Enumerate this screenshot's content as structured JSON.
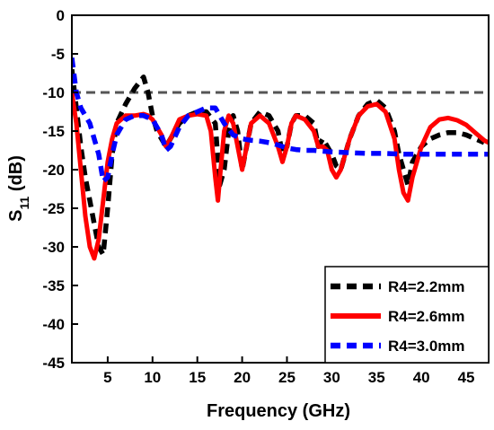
{
  "chart_data": {
    "type": "line",
    "title": "",
    "xlabel": "Frequency (GHz)",
    "ylabel_main": "S",
    "ylabel_sub": "11",
    "ylabel_suffix": " (dB)",
    "xlim": [
      1,
      47.5
    ],
    "ylim": [
      -45,
      0
    ],
    "xticks": [
      5,
      10,
      15,
      20,
      25,
      30,
      35,
      40,
      45
    ],
    "yticks": [
      0,
      -5,
      -10,
      -15,
      -20,
      -25,
      -30,
      -35,
      -40,
      -45
    ],
    "legend_position": "bottom-right",
    "reference_line": {
      "y": -10,
      "color": "#555555",
      "style": "dashed"
    },
    "series": [
      {
        "name": "R4=2.2mm",
        "color": "#000000",
        "style": "dashed",
        "points": [
          [
            1,
            -7
          ],
          [
            1.5,
            -12
          ],
          [
            2,
            -17
          ],
          [
            2.5,
            -21
          ],
          [
            3,
            -24
          ],
          [
            3.5,
            -27
          ],
          [
            4,
            -30
          ],
          [
            4.5,
            -31
          ],
          [
            5,
            -25
          ],
          [
            5.5,
            -18
          ],
          [
            6,
            -14
          ],
          [
            7,
            -11.5
          ],
          [
            8,
            -9.5
          ],
          [
            9,
            -8
          ],
          [
            9.5,
            -10
          ],
          [
            10,
            -13
          ],
          [
            10.5,
            -15
          ],
          [
            11,
            -16
          ],
          [
            11.5,
            -17
          ],
          [
            12,
            -16
          ],
          [
            13,
            -14
          ],
          [
            14,
            -13
          ],
          [
            15,
            -12.5
          ],
          [
            16,
            -12.5
          ],
          [
            17,
            -14
          ],
          [
            17.5,
            -22
          ],
          [
            18,
            -20
          ],
          [
            18.5,
            -15
          ],
          [
            19,
            -13
          ],
          [
            19.5,
            -15
          ],
          [
            20,
            -20
          ],
          [
            20.5,
            -17
          ],
          [
            21,
            -14
          ],
          [
            22,
            -12.5
          ],
          [
            23,
            -13
          ],
          [
            24,
            -15
          ],
          [
            24.5,
            -18
          ],
          [
            25,
            -17
          ],
          [
            25.5,
            -14
          ],
          [
            26,
            -13
          ],
          [
            27,
            -13
          ],
          [
            28,
            -14
          ],
          [
            28.5,
            -17
          ],
          [
            29,
            -16
          ],
          [
            30,
            -18
          ],
          [
            30.5,
            -19.5
          ],
          [
            31,
            -20
          ],
          [
            32,
            -16
          ],
          [
            33,
            -13
          ],
          [
            34,
            -11.5
          ],
          [
            35,
            -11
          ],
          [
            36,
            -12
          ],
          [
            37,
            -15
          ],
          [
            37.5,
            -18
          ],
          [
            38,
            -20
          ],
          [
            38.5,
            -22
          ],
          [
            39,
            -19
          ],
          [
            40,
            -17
          ],
          [
            41,
            -16
          ],
          [
            42,
            -15.5
          ],
          [
            43,
            -15.2
          ],
          [
            44,
            -15.2
          ],
          [
            45,
            -15.5
          ],
          [
            46,
            -16
          ],
          [
            47,
            -16.5
          ]
        ]
      },
      {
        "name": "R4=2.6mm",
        "color": "#ff0000",
        "style": "solid",
        "points": [
          [
            1,
            -10
          ],
          [
            1.5,
            -14
          ],
          [
            2,
            -20
          ],
          [
            2.5,
            -26
          ],
          [
            3,
            -30
          ],
          [
            3.5,
            -31.5
          ],
          [
            4,
            -29
          ],
          [
            4.5,
            -24
          ],
          [
            5,
            -19
          ],
          [
            5.5,
            -16
          ],
          [
            6,
            -14
          ],
          [
            7,
            -13
          ],
          [
            8,
            -13
          ],
          [
            9,
            -12.8
          ],
          [
            9.5,
            -13
          ],
          [
            10,
            -13.5
          ],
          [
            11,
            -15.5
          ],
          [
            11.5,
            -17
          ],
          [
            12,
            -16
          ],
          [
            13,
            -13.5
          ],
          [
            14,
            -13
          ],
          [
            15,
            -12.8
          ],
          [
            16,
            -13
          ],
          [
            16.5,
            -15
          ],
          [
            17,
            -21
          ],
          [
            17.3,
            -24
          ],
          [
            17.6,
            -20
          ],
          [
            18,
            -15
          ],
          [
            18.5,
            -13
          ],
          [
            19,
            -14
          ],
          [
            19.5,
            -17
          ],
          [
            20,
            -20
          ],
          [
            20.5,
            -17
          ],
          [
            21,
            -14
          ],
          [
            22,
            -13
          ],
          [
            23,
            -14
          ],
          [
            24,
            -17
          ],
          [
            24.5,
            -19
          ],
          [
            25,
            -17
          ],
          [
            25.5,
            -14
          ],
          [
            26,
            -13
          ],
          [
            27,
            -13.5
          ],
          [
            28,
            -15
          ],
          [
            28.5,
            -17
          ],
          [
            29,
            -17
          ],
          [
            29.5,
            -17.5
          ],
          [
            30,
            -20
          ],
          [
            30.5,
            -21
          ],
          [
            31,
            -20
          ],
          [
            32,
            -16
          ],
          [
            33,
            -13
          ],
          [
            34,
            -11.8
          ],
          [
            35,
            -11.5
          ],
          [
            36,
            -12.5
          ],
          [
            37,
            -16
          ],
          [
            37.5,
            -20
          ],
          [
            38,
            -23
          ],
          [
            38.5,
            -24
          ],
          [
            39,
            -21
          ],
          [
            40,
            -17
          ],
          [
            41,
            -14.5
          ],
          [
            42,
            -13.5
          ],
          [
            43,
            -13.3
          ],
          [
            44,
            -13.6
          ],
          [
            45,
            -14.2
          ],
          [
            46,
            -15.2
          ],
          [
            47,
            -16.2
          ],
          [
            47.5,
            -16.5
          ]
        ]
      },
      {
        "name": "R4=3.0mm",
        "color": "#0000ff",
        "style": "dashed",
        "points": [
          [
            1,
            -5.5
          ],
          [
            1.5,
            -10
          ],
          [
            2,
            -12
          ],
          [
            2.5,
            -13
          ],
          [
            3,
            -14
          ],
          [
            3.5,
            -16
          ],
          [
            4,
            -18
          ],
          [
            4.5,
            -21.5
          ],
          [
            5,
            -21
          ],
          [
            5.5,
            -18
          ],
          [
            6,
            -15.5
          ],
          [
            7,
            -13.5
          ],
          [
            8,
            -13
          ],
          [
            9,
            -13
          ],
          [
            10,
            -13.5
          ],
          [
            11,
            -15.5
          ],
          [
            11.5,
            -17.5
          ],
          [
            12,
            -17
          ],
          [
            13,
            -14.5
          ],
          [
            14,
            -13
          ],
          [
            15,
            -12.5
          ],
          [
            16,
            -12
          ],
          [
            17,
            -12
          ],
          [
            18,
            -14
          ],
          [
            19,
            -15.5
          ],
          [
            20,
            -16
          ],
          [
            21,
            -16.2
          ],
          [
            22,
            -16.3
          ],
          [
            23,
            -16.5
          ],
          [
            24,
            -16.8
          ],
          [
            25,
            -17.2
          ],
          [
            26,
            -17.4
          ],
          [
            27,
            -17.5
          ],
          [
            28,
            -17.5
          ],
          [
            30,
            -17.7
          ],
          [
            32,
            -17.8
          ],
          [
            34,
            -17.9
          ],
          [
            36,
            -17.9
          ],
          [
            38,
            -18
          ],
          [
            40,
            -18
          ],
          [
            42,
            -18
          ],
          [
            44,
            -18
          ],
          [
            46,
            -18
          ],
          [
            47.5,
            -18
          ]
        ]
      }
    ]
  }
}
